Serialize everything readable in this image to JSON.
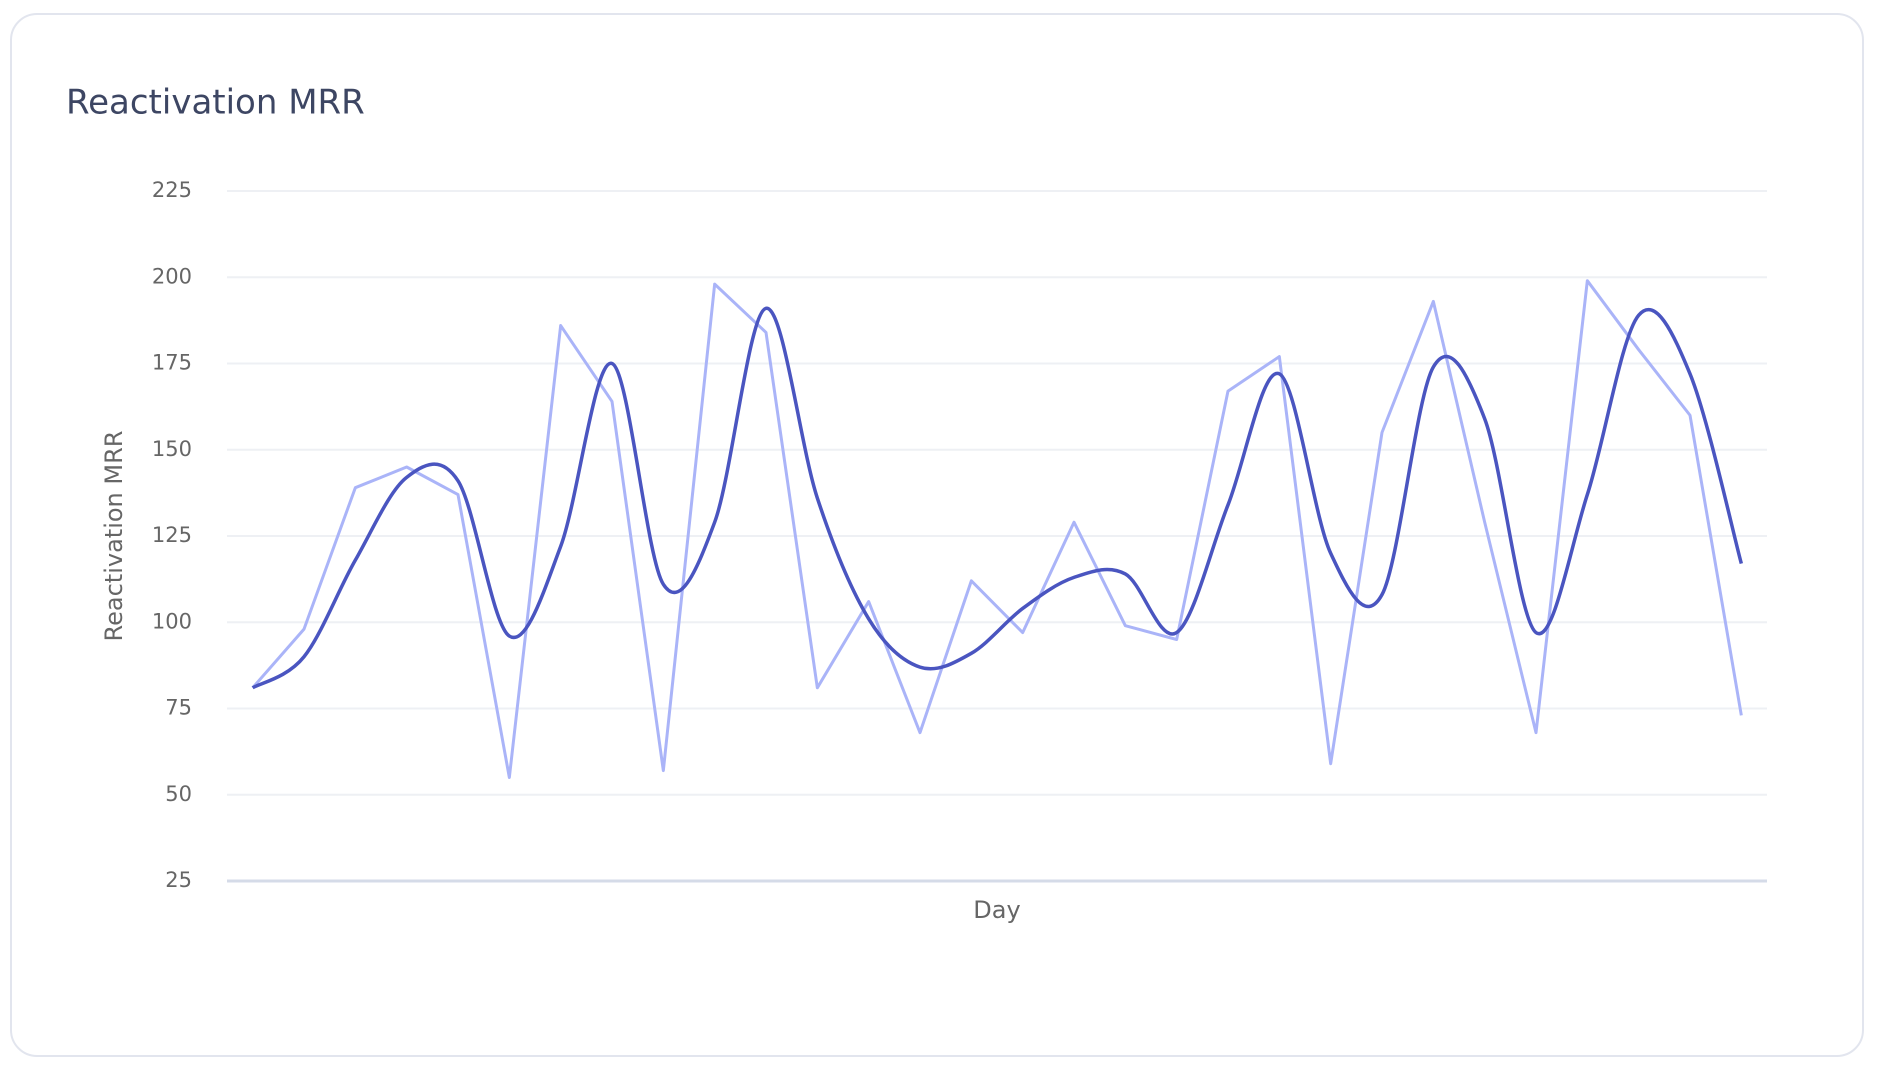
{
  "chart_data": {
    "type": "line",
    "title": "Reactivation MRR",
    "xlabel": "Day",
    "ylabel": "Reactivation MRR",
    "categories": [
      null,
      null,
      null,
      null,
      null,
      null,
      null,
      null,
      null,
      null,
      null,
      null,
      null,
      null,
      null,
      null,
      null,
      null,
      null,
      null,
      null,
      null,
      null,
      null,
      null,
      null,
      null,
      null,
      null,
      null
    ],
    "series": [
      {
        "color": "#aab4f8",
        "smooth": false,
        "values": [
          81,
          98,
          139,
          145,
          137,
          55,
          186,
          164,
          57,
          198,
          184,
          81,
          106,
          68,
          112,
          97,
          129,
          99,
          95,
          167,
          177,
          59,
          155,
          193,
          129,
          68,
          199,
          179,
          160,
          73
        ]
      },
      {
        "color": "#4a55c0",
        "smooth": true,
        "values": [
          81,
          90,
          118,
          142,
          141,
          96,
          122,
          175,
          111,
          129,
          191,
          136,
          101,
          87,
          91,
          104,
          113,
          114,
          97,
          134,
          172,
          120,
          108,
          174,
          159,
          97,
          137,
          189,
          172,
          117
        ]
      }
    ],
    "ylim": [
      25,
      225
    ],
    "yticks": [
      25,
      50,
      75,
      100,
      125,
      150,
      175,
      200,
      225
    ],
    "grid": true
  }
}
